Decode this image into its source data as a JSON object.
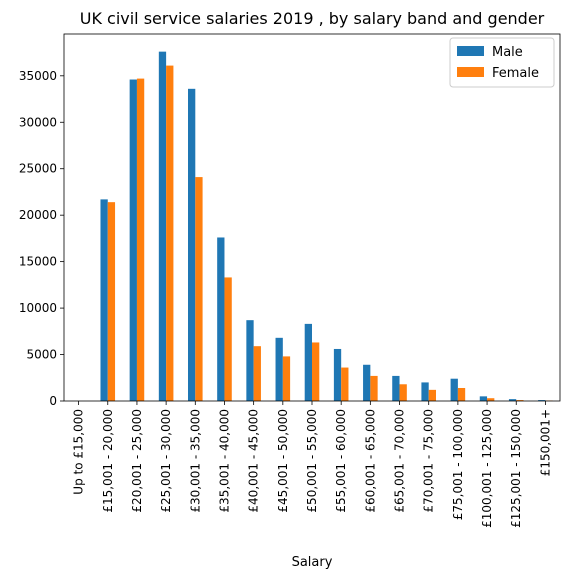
{
  "chart_data": {
    "type": "bar",
    "title": "UK civil service salaries 2019 , by salary band and gender",
    "xlabel": "Salary",
    "ylabel": "",
    "ylim": [
      0,
      39500
    ],
    "yticks": [
      0,
      5000,
      10000,
      15000,
      20000,
      25000,
      30000,
      35000
    ],
    "grid": false,
    "legend_position": "top-right",
    "categories": [
      "Up to £15,000",
      "£15,001 - 20,000",
      "£20,001 - 25,000",
      "£25,001 - 30,000",
      "£30,001 - 35,000",
      "£35,001 - 40,000",
      "£40,001 - 45,000",
      "£45,001 - 50,000",
      "£50,001 - 55,000",
      "£55,001 - 60,000",
      "£60,001 - 65,000",
      "£65,001 - 70,000",
      "£70,001 - 75,000",
      "£75,001 - 100,000",
      "£100,001 - 125,000",
      "£125,001 - 150,000",
      "£150,001+"
    ],
    "series": [
      {
        "name": "Male",
        "color": "#1f77b4",
        "values": [
          0,
          21700,
          34600,
          37600,
          33600,
          17600,
          8700,
          6800,
          8300,
          5600,
          3900,
          2700,
          2000,
          2400,
          500,
          200,
          100
        ]
      },
      {
        "name": "Female",
        "color": "#ff7f0e",
        "values": [
          0,
          21400,
          34700,
          36100,
          24100,
          13300,
          5900,
          4800,
          6300,
          3600,
          2700,
          1800,
          1200,
          1400,
          300,
          100,
          50
        ]
      }
    ]
  }
}
